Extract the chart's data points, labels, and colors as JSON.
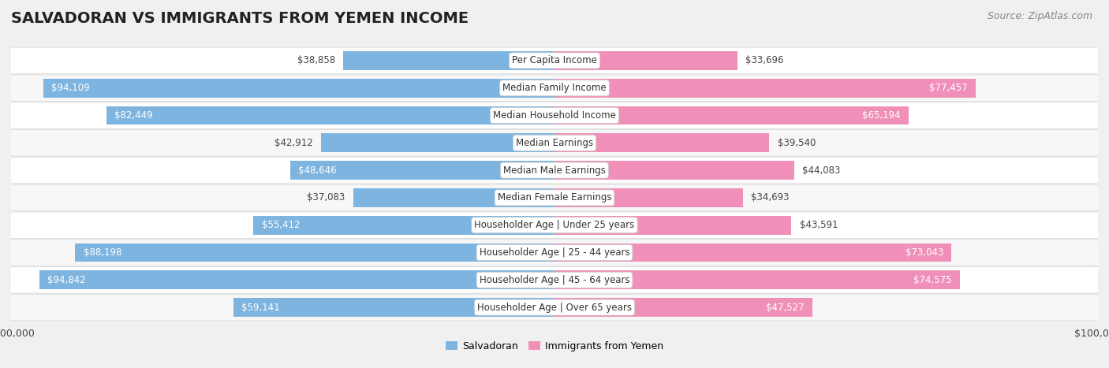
{
  "title": "SALVADORAN VS IMMIGRANTS FROM YEMEN INCOME",
  "source": "Source: ZipAtlas.com",
  "categories": [
    "Per Capita Income",
    "Median Family Income",
    "Median Household Income",
    "Median Earnings",
    "Median Male Earnings",
    "Median Female Earnings",
    "Householder Age | Under 25 years",
    "Householder Age | 25 - 44 years",
    "Householder Age | 45 - 64 years",
    "Householder Age | Over 65 years"
  ],
  "salvadoran_values": [
    38858,
    94109,
    82449,
    42912,
    48646,
    37083,
    55412,
    88198,
    94842,
    59141
  ],
  "yemen_values": [
    33696,
    77457,
    65194,
    39540,
    44083,
    34693,
    43591,
    73043,
    74575,
    47527
  ],
  "salvadoran_color_light": "#a8c8e8",
  "salvadoran_color_main": "#7eb5e0",
  "salvadoran_color_dark": "#5a9fd4",
  "yemen_color_light": "#f5b8ce",
  "yemen_color_main": "#f090b8",
  "yemen_color_dark": "#e8608a",
  "max_value": 100000,
  "bg_color": "#f0f0f0",
  "row_bg_even": "#ffffff",
  "row_bg_odd": "#f7f7f7",
  "row_border": "#d8d8d8",
  "inside_label_threshold": 0.45,
  "title_fontsize": 14,
  "source_fontsize": 9,
  "bar_label_fontsize": 8.5,
  "cat_label_fontsize": 8.5,
  "axis_label_fontsize": 9
}
